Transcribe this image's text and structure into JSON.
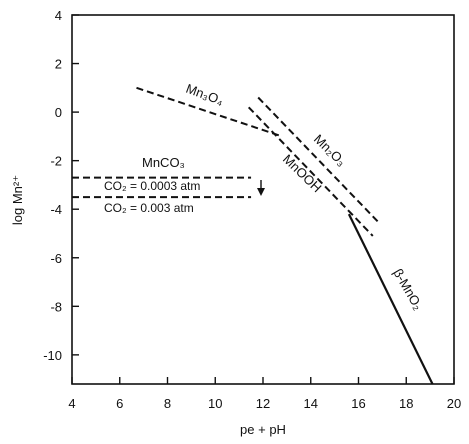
{
  "chart_data": {
    "type": "line",
    "title": "",
    "xlabel": "pe + pH",
    "ylabel": "log Mn²⁺",
    "xlim": [
      4,
      20
    ],
    "ylim": [
      -11.2,
      4
    ],
    "x_ticks": [
      "4",
      "6",
      "8",
      "10",
      "12",
      "14",
      "16",
      "18",
      "20"
    ],
    "y_ticks": [
      "4",
      "2",
      "0",
      "-2",
      "-4",
      "-6",
      "-8",
      "-10"
    ],
    "series": [
      {
        "name": "Mn₃O₄",
        "style": "dashed",
        "points": [
          [
            6.7,
            1.0
          ],
          [
            12.8,
            -1.0
          ]
        ]
      },
      {
        "name": "Mn₂O₃",
        "style": "dashed",
        "points": [
          [
            11.8,
            0.6
          ],
          [
            16.8,
            -4.5
          ]
        ]
      },
      {
        "name": "MnOOH",
        "style": "dashed",
        "points": [
          [
            11.4,
            0.2
          ],
          [
            16.6,
            -5.1
          ]
        ]
      },
      {
        "name": "β-MnO₂",
        "style": "solid",
        "points": [
          [
            15.6,
            -4.2
          ],
          [
            19.1,
            -11.2
          ]
        ]
      }
    ],
    "reference_lines": [
      {
        "style": "dashed",
        "y": -2.7,
        "x": [
          4,
          11.5
        ]
      },
      {
        "style": "dashed",
        "y": -3.5,
        "x": [
          4,
          11.5
        ]
      }
    ],
    "annotations": {
      "mn3o4": "Mn₃O₄",
      "mn2o3": "Mn₂O₃",
      "mnooh": "MnOOH",
      "mno2": "β-MnO₂",
      "mnco3": "MnCO₃",
      "co2_high": "CO₂ = 0.0003 atm",
      "co2_low": "CO₂ = 0.003 atm"
    },
    "grid": false
  }
}
